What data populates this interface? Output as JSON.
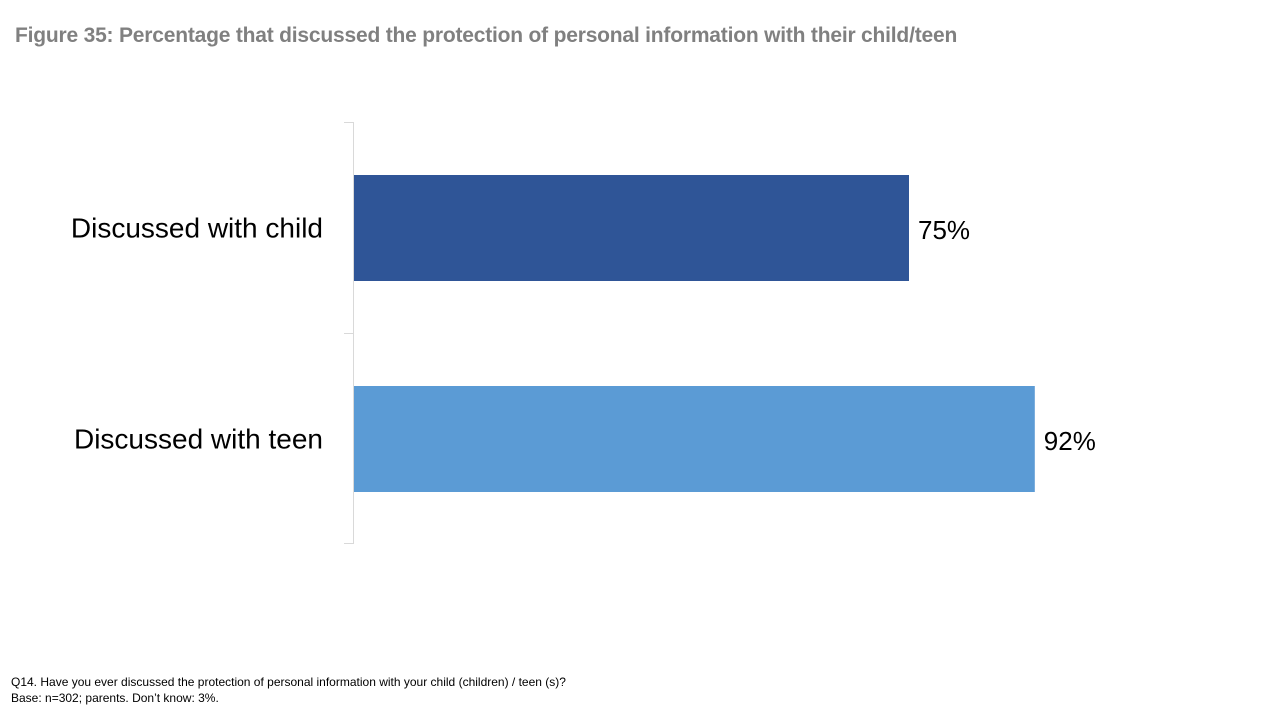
{
  "figure_title": "Figure 35: Percentage that discussed the protection of personal information with their child/teen",
  "chart_data": {
    "type": "bar",
    "orientation": "horizontal",
    "categories": [
      "Discussed with child",
      "Discussed with teen"
    ],
    "values": [
      75,
      92
    ],
    "value_labels": [
      "75%",
      "92%"
    ],
    "unit": "%",
    "xlim": [
      0,
      100
    ],
    "grid": false,
    "legend": false,
    "colors": [
      "#2F5597",
      "#5B9BD5"
    ]
  },
  "footnote": {
    "question": "Q14. Have you ever discussed the protection of personal information with your child (children) / teen (s)?",
    "base": "Base: n=302; parents. Don’t know: 3%."
  }
}
